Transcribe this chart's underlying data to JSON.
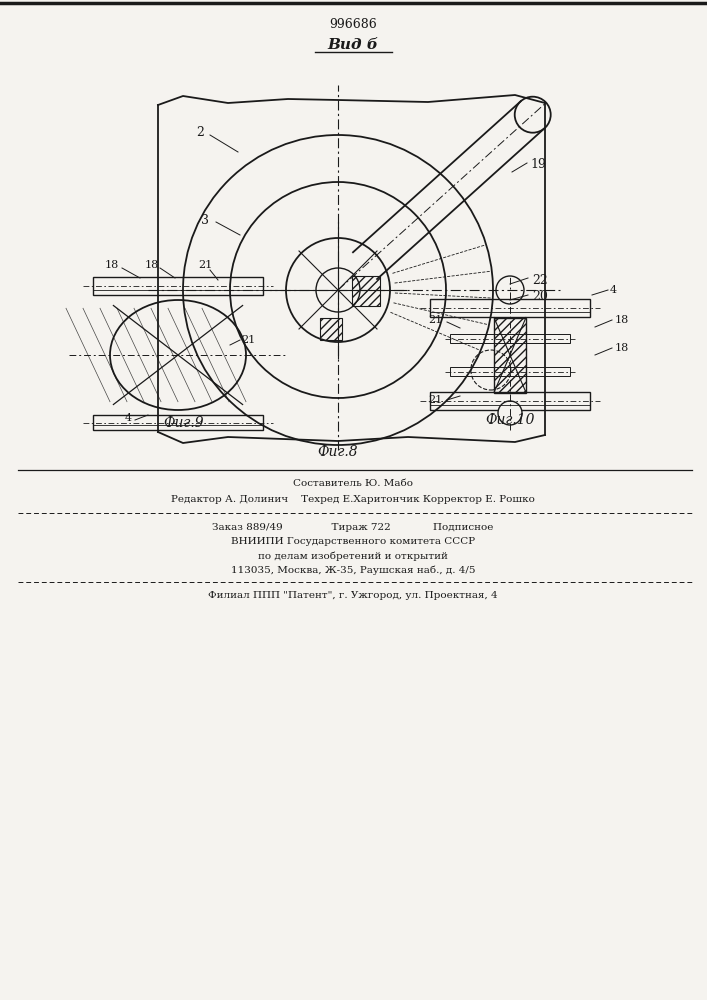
{
  "title": "996686",
  "view_label": "Вид б",
  "fig8_label": "Фиг.8",
  "fig9_label": "Фиг.9",
  "fig10_label": "Фиг.10",
  "footer_lines": [
    "Составитель Ю. Мабо",
    "Редактор А. Долинич    Техред Е.Харитончик Корректор Е. Рошко",
    "Заказ 889/49               Тираж 722             Подписное",
    "ВНИИПИ Государственного комитета СССР",
    "по делам изобретений и открытий",
    "113035, Москва, Ж-35, Раушская наб., д. 4/5",
    "Филиал ППП \"Патент\", г. Ужгород, ул. Проектная, 4"
  ],
  "bg_color": "#f5f3ef",
  "line_color": "#1a1a1a"
}
